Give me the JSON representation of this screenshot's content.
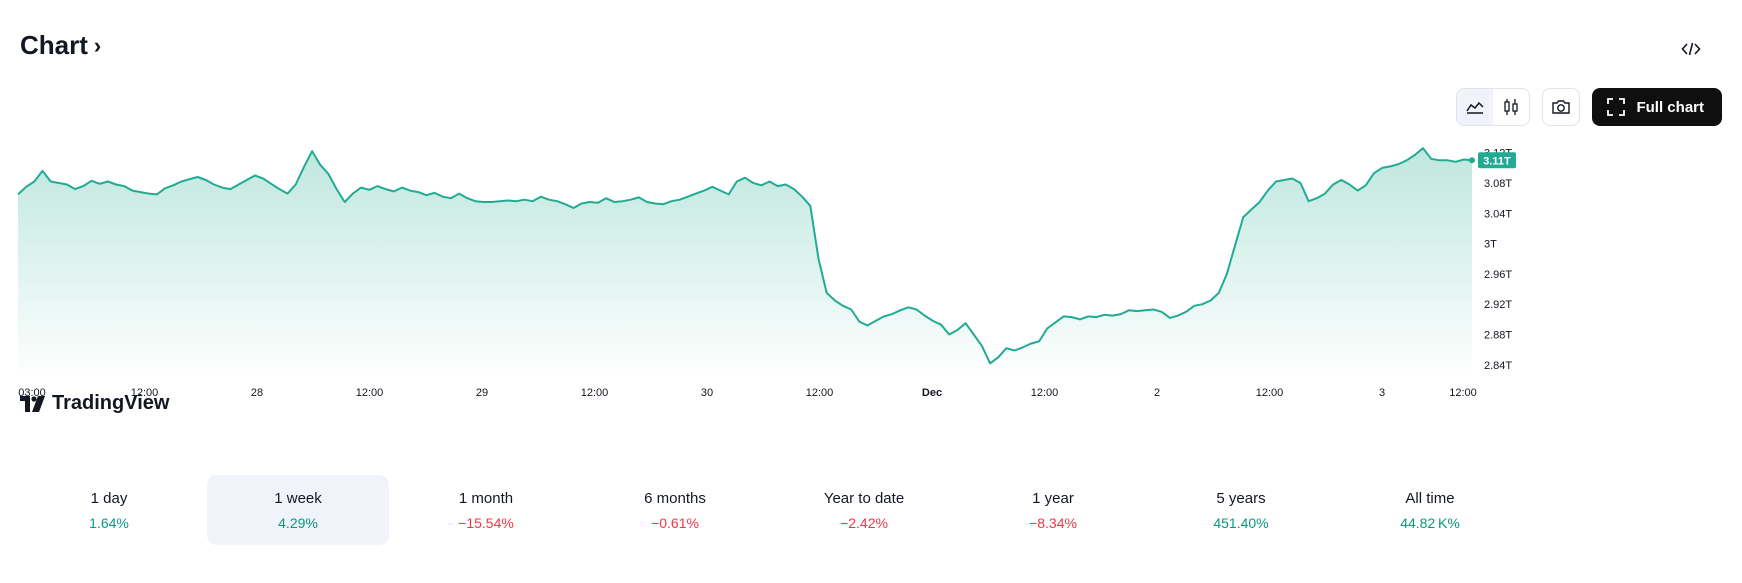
{
  "header": {
    "title": "Chart",
    "embed_icon": "code-icon"
  },
  "toolbar": {
    "line_icon": "area-chart-icon",
    "candles_icon": "candlestick-icon",
    "snapshot_icon": "camera-icon",
    "full_chart_label": "Full chart",
    "full_chart_icon": "fullscreen-icon"
  },
  "watermark": {
    "text": "TradingView",
    "icon": "tradingview-logo-icon"
  },
  "colors": {
    "line": "#22ab94",
    "area_top": "#bfe7de",
    "area_bottom": "#ffffff",
    "current_badge": "#22ab94",
    "positive": "#089981",
    "negative": "#f23645"
  },
  "chart_data": {
    "type": "area",
    "y_ticks": [
      "2.84T",
      "2.88T",
      "2.92T",
      "2.96T",
      "3T",
      "3.04T",
      "3.08T",
      "3.12T"
    ],
    "y_tick_values": [
      2.84,
      2.88,
      2.92,
      2.96,
      3.0,
      3.04,
      3.08,
      3.12
    ],
    "ylim": [
      2.82,
      3.15
    ],
    "x_ticks": [
      "03:00",
      "12:00",
      "28",
      "12:00",
      "29",
      "12:00",
      "30",
      "12:00",
      "Dec",
      "12:00",
      "2",
      "12:00",
      "3",
      "12:00"
    ],
    "x_tick_bold": [
      false,
      false,
      false,
      false,
      false,
      false,
      false,
      false,
      true,
      false,
      false,
      false,
      false,
      false
    ],
    "current_value_label": "3.11T",
    "current_value": 3.11,
    "values": [
      3.065,
      3.075,
      3.082,
      3.096,
      3.082,
      3.08,
      3.078,
      3.072,
      3.076,
      3.083,
      3.079,
      3.082,
      3.078,
      3.076,
      3.07,
      3.068,
      3.066,
      3.065,
      3.073,
      3.077,
      3.082,
      3.085,
      3.088,
      3.084,
      3.078,
      3.074,
      3.072,
      3.078,
      3.084,
      3.09,
      3.086,
      3.079,
      3.072,
      3.066,
      3.078,
      3.101,
      3.122,
      3.104,
      3.092,
      3.072,
      3.055,
      3.066,
      3.074,
      3.071,
      3.076,
      3.072,
      3.069,
      3.074,
      3.07,
      3.068,
      3.064,
      3.067,
      3.062,
      3.06,
      3.066,
      3.06,
      3.056,
      3.055,
      3.055,
      3.056,
      3.057,
      3.056,
      3.058,
      3.056,
      3.062,
      3.058,
      3.056,
      3.052,
      3.047,
      3.053,
      3.055,
      3.054,
      3.06,
      3.055,
      3.056,
      3.058,
      3.061,
      3.055,
      3.053,
      3.052,
      3.056,
      3.058,
      3.062,
      3.066,
      3.07,
      3.075,
      3.07,
      3.065,
      3.082,
      3.087,
      3.08,
      3.077,
      3.082,
      3.076,
      3.078,
      3.072,
      3.062,
      3.05,
      2.98,
      2.935,
      2.925,
      2.918,
      2.913,
      2.897,
      2.892,
      2.898,
      2.904,
      2.907,
      2.912,
      2.916,
      2.913,
      2.905,
      2.898,
      2.893,
      2.88,
      2.886,
      2.895,
      2.88,
      2.865,
      2.842,
      2.85,
      2.862,
      2.859,
      2.863,
      2.868,
      2.871,
      2.888,
      2.896,
      2.904,
      2.903,
      2.9,
      2.904,
      2.903,
      2.906,
      2.905,
      2.907,
      2.912,
      2.911,
      2.912,
      2.913,
      2.91,
      2.902,
      2.905,
      2.91,
      2.918,
      2.92,
      2.925,
      2.935,
      2.96,
      2.998,
      3.035,
      3.045,
      3.055,
      3.07,
      3.082,
      3.084,
      3.086,
      3.08,
      3.056,
      3.06,
      3.066,
      3.078,
      3.084,
      3.078,
      3.07,
      3.077,
      3.093,
      3.1,
      3.102,
      3.105,
      3.11,
      3.117,
      3.126,
      3.112,
      3.11,
      3.11,
      3.108,
      3.111,
      3.11
    ]
  },
  "periods": [
    {
      "label": "1 day",
      "value": "1.64%",
      "trend": "pos",
      "selected": false
    },
    {
      "label": "1 week",
      "value": "4.29%",
      "trend": "pos",
      "selected": true
    },
    {
      "label": "1 month",
      "value": "−15.54%",
      "trend": "neg",
      "selected": false
    },
    {
      "label": "6 months",
      "value": "−0.61%",
      "trend": "neg",
      "selected": false
    },
    {
      "label": "Year to date",
      "value": "−2.42%",
      "trend": "neg",
      "selected": false
    },
    {
      "label": "1 year",
      "value": "−8.34%",
      "trend": "neg",
      "selected": false
    },
    {
      "label": "5 years",
      "value": "451.40%",
      "trend": "pos",
      "selected": false
    },
    {
      "label": "All time",
      "value": "44.82 K%",
      "trend": "pos",
      "selected": false
    }
  ]
}
